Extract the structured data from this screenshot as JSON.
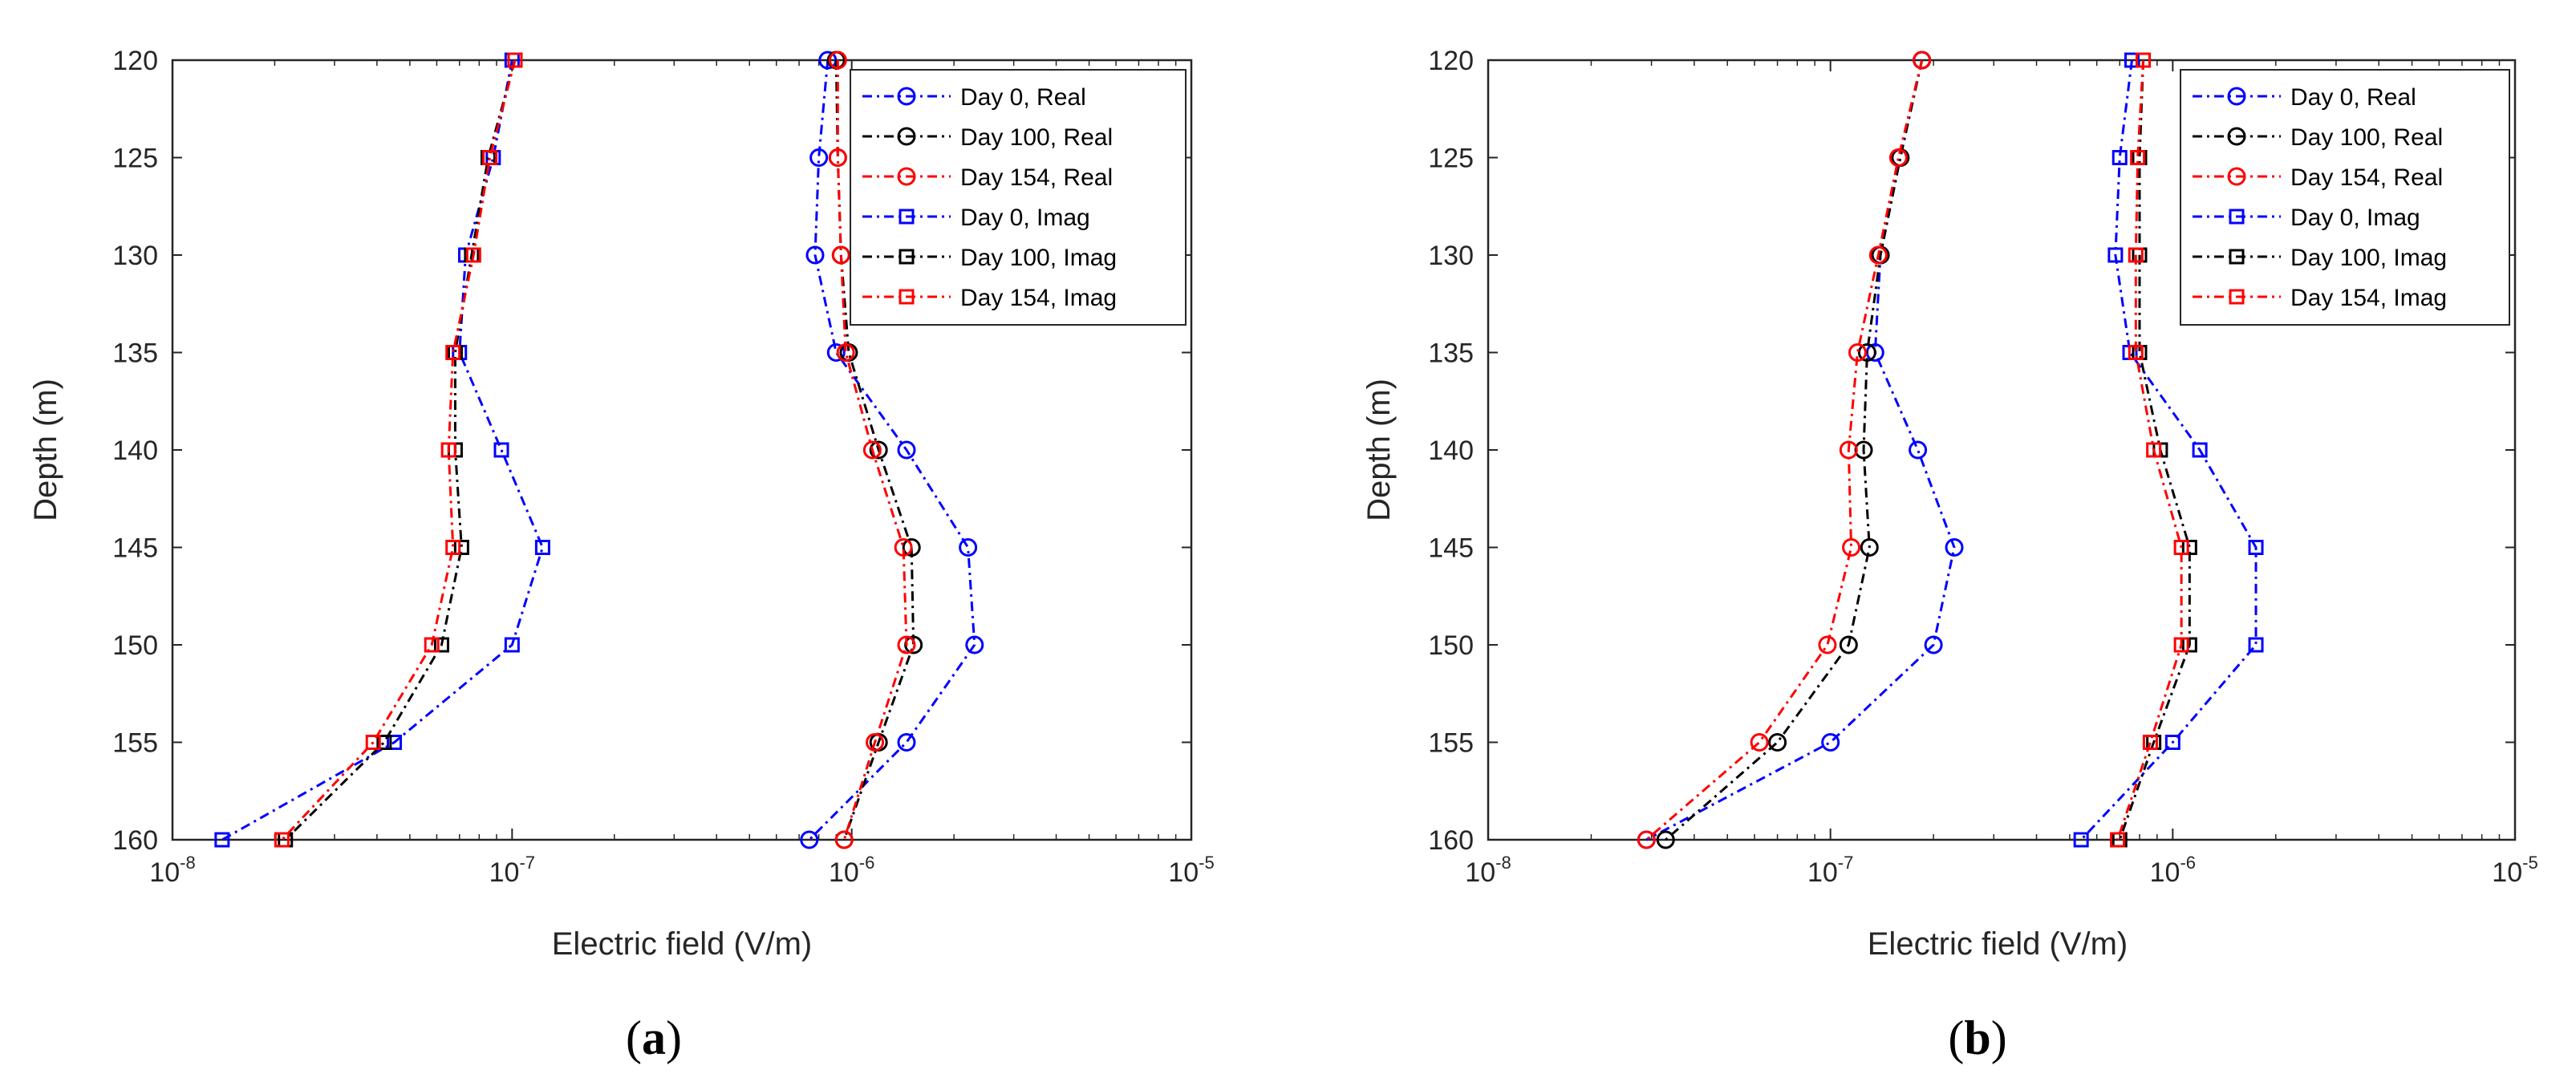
{
  "chart_data": [
    {
      "type": "line",
      "panel_label": "a",
      "xlabel": "Electric field (V/m)",
      "ylabel": "Depth (m)",
      "xscale": "log",
      "xlim": [
        1e-08,
        1e-05
      ],
      "ylim": [
        120,
        160
      ],
      "y_reversed": true,
      "xtick_labels": [
        {
          "base": "10",
          "exp": "-8"
        },
        {
          "base": "10",
          "exp": "-7"
        },
        {
          "base": "10",
          "exp": "-6"
        },
        {
          "base": "10",
          "exp": "-5"
        }
      ],
      "ytick_labels": [
        "120",
        "125",
        "130",
        "135",
        "140",
        "145",
        "150",
        "155",
        "160"
      ],
      "legend_position": "top-right",
      "y": [
        120,
        125,
        130,
        135,
        140,
        145,
        150,
        155,
        160
      ],
      "series": [
        {
          "name": "Day 0, Real",
          "color": "#0000ff",
          "marker": "circle",
          "x": [
            8.5e-07,
            8e-07,
            7.8e-07,
            9e-07,
            1.45e-06,
            2.2e-06,
            2.3e-06,
            1.45e-06,
            7.5e-07
          ]
        },
        {
          "name": "Day 100, Real",
          "color": "#000000",
          "marker": "circle",
          "x": [
            9e-07,
            9.1e-07,
            9.3e-07,
            9.8e-07,
            1.2e-06,
            1.5e-06,
            1.52e-06,
            1.2e-06,
            9.5e-07
          ]
        },
        {
          "name": "Day 154, Real",
          "color": "#ff0000",
          "marker": "circle",
          "x": [
            9.1e-07,
            9.1e-07,
            9.3e-07,
            9.6e-07,
            1.15e-06,
            1.42e-06,
            1.45e-06,
            1.17e-06,
            9.5e-07
          ]
        },
        {
          "name": "Day 0, Imag",
          "color": "#0000ff",
          "marker": "square",
          "x": [
            1e-07,
            8.8e-08,
            7.3e-08,
            7e-08,
            9.3e-08,
            1.23e-07,
            1e-07,
            4.5e-08,
            1.4e-08
          ]
        },
        {
          "name": "Day 100, Imag",
          "color": "#000000",
          "marker": "square",
          "x": [
            1.02e-07,
            8.5e-08,
            7.6e-08,
            6.8e-08,
            6.8e-08,
            7.1e-08,
            6.2e-08,
            4.2e-08,
            2.15e-08
          ]
        },
        {
          "name": "Day 154, Imag",
          "color": "#ff0000",
          "marker": "square",
          "x": [
            1.02e-07,
            8.6e-08,
            7.7e-08,
            6.7e-08,
            6.5e-08,
            6.7e-08,
            5.8e-08,
            3.9e-08,
            2.1e-08
          ]
        }
      ]
    },
    {
      "type": "line",
      "panel_label": "b",
      "xlabel": "Electric field (V/m)",
      "ylabel": "Depth (m)",
      "xscale": "log",
      "xlim": [
        1e-08,
        1e-05
      ],
      "ylim": [
        120,
        160
      ],
      "y_reversed": true,
      "xtick_labels": [
        {
          "base": "10",
          "exp": "-8"
        },
        {
          "base": "10",
          "exp": "-7"
        },
        {
          "base": "10",
          "exp": "-6"
        },
        {
          "base": "10",
          "exp": "-5"
        }
      ],
      "ytick_labels": [
        "120",
        "125",
        "130",
        "135",
        "140",
        "145",
        "150",
        "155",
        "160"
      ],
      "legend_position": "top-right",
      "y": [
        120,
        125,
        130,
        135,
        140,
        145,
        150,
        155,
        160
      ],
      "series": [
        {
          "name": "Day 0, Real",
          "color": "#0000ff",
          "marker": "circle",
          "x": [
            1.85e-07,
            1.6e-07,
            1.4e-07,
            1.35e-07,
            1.8e-07,
            2.3e-07,
            2e-07,
            1e-07,
            2.9e-08
          ]
        },
        {
          "name": "Day 100, Real",
          "color": "#000000",
          "marker": "circle",
          "x": [
            1.85e-07,
            1.6e-07,
            1.4e-07,
            1.28e-07,
            1.25e-07,
            1.3e-07,
            1.13e-07,
            7e-08,
            3.3e-08
          ]
        },
        {
          "name": "Day 154, Real",
          "color": "#ff0000",
          "marker": "circle",
          "x": [
            1.85e-07,
            1.58e-07,
            1.38e-07,
            1.2e-07,
            1.13e-07,
            1.15e-07,
            9.8e-08,
            6.2e-08,
            2.9e-08
          ]
        },
        {
          "name": "Day 0, Imag",
          "color": "#0000ff",
          "marker": "square",
          "x": [
            7.6e-07,
            7e-07,
            6.8e-07,
            7.5e-07,
            1.2e-06,
            1.75e-06,
            1.75e-06,
            1e-06,
            5.4e-07
          ]
        },
        {
          "name": "Day 100, Imag",
          "color": "#000000",
          "marker": "square",
          "x": [
            8.2e-07,
            8e-07,
            8e-07,
            8e-07,
            9.2e-07,
            1.12e-06,
            1.12e-06,
            8.8e-07,
            7e-07
          ]
        },
        {
          "name": "Day 154, Imag",
          "color": "#ff0000",
          "marker": "square",
          "x": [
            8.2e-07,
            7.9e-07,
            7.8e-07,
            7.8e-07,
            8.8e-07,
            1.06e-06,
            1.06e-06,
            8.6e-07,
            6.9e-07
          ]
        }
      ]
    }
  ]
}
